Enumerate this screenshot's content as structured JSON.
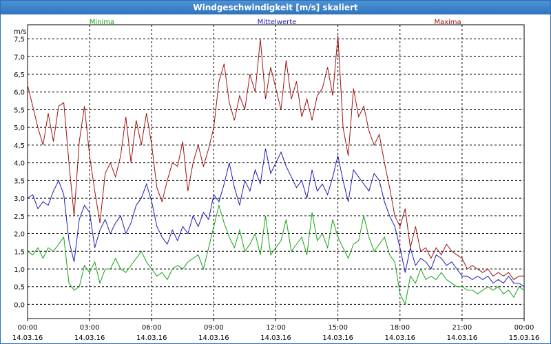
{
  "window": {
    "title": "Windgeschwindigkeit [m/s] skaliert"
  },
  "colors": {
    "minima": "#13a313",
    "mittelwerte": "#1a1ab4",
    "maxima": "#a01010",
    "grid": "#000000",
    "title_bar": "#3a80c8"
  },
  "chart_data": {
    "type": "line",
    "title": "Windgeschwindigkeit [m/s] skaliert",
    "ylabel": "m/s",
    "ylim": [
      -0.4,
      7.9
    ],
    "yticks": [
      "0,0",
      "0,5",
      "1,0",
      "1,5",
      "2,0",
      "2,5",
      "3,0",
      "3,5",
      "4,0",
      "4,5",
      "5,0",
      "5,5",
      "6,0",
      "6,5",
      "7,0",
      "7,5"
    ],
    "xlim": [
      0,
      24
    ],
    "xticks": [
      {
        "time": "00:00",
        "date": "14.03.16"
      },
      {
        "time": "03:00",
        "date": "14.03.16"
      },
      {
        "time": "06:00",
        "date": "14.03.16"
      },
      {
        "time": "09:00",
        "date": "14.03.16"
      },
      {
        "time": "12:00",
        "date": "14.03.16"
      },
      {
        "time": "15:00",
        "date": "14.03.16"
      },
      {
        "time": "18:00",
        "date": "14.03.16"
      },
      {
        "time": "21:00",
        "date": "14.03.16"
      },
      {
        "time": "00:00",
        "date": "15.03.16"
      }
    ],
    "grid": true,
    "legend": "top",
    "series": [
      {
        "name": "Minima",
        "x": [
          0,
          0.25,
          0.5,
          0.75,
          1,
          1.25,
          1.5,
          1.75,
          2,
          2.25,
          2.5,
          2.75,
          3,
          3.25,
          3.5,
          3.75,
          4,
          4.25,
          4.5,
          4.75,
          5,
          5.25,
          5.5,
          5.75,
          6,
          6.25,
          6.5,
          6.75,
          7,
          7.25,
          7.5,
          7.75,
          8,
          8.25,
          8.5,
          8.75,
          9,
          9.25,
          9.5,
          9.75,
          10,
          10.25,
          10.5,
          10.75,
          11,
          11.25,
          11.5,
          11.75,
          12,
          12.25,
          12.5,
          12.75,
          13,
          13.25,
          13.5,
          13.75,
          14,
          14.25,
          14.5,
          14.75,
          15,
          15.25,
          15.5,
          15.75,
          16,
          16.25,
          16.5,
          16.75,
          17,
          17.25,
          17.5,
          17.75,
          18,
          18.25,
          18.5,
          18.75,
          19,
          19.25,
          19.5,
          19.75,
          20,
          20.25,
          20.5,
          20.75,
          21,
          21.25,
          21.5,
          21.75,
          22,
          22.25,
          22.5,
          22.75,
          23,
          23.25,
          23.5,
          23.75,
          24
        ],
        "values": [
          1.5,
          1.4,
          1.6,
          1.3,
          1.6,
          1.5,
          1.7,
          1.9,
          0.6,
          0.4,
          0.5,
          1.1,
          0.9,
          1.2,
          0.6,
          1.0,
          1.0,
          1.3,
          1.0,
          0.9,
          1.1,
          1.3,
          1.5,
          1.2,
          1.0,
          0.8,
          0.9,
          0.7,
          1.0,
          1.1,
          1.0,
          1.2,
          1.3,
          1.4,
          1.0,
          1.6,
          2.2,
          2.8,
          2.3,
          1.9,
          1.6,
          2.1,
          1.5,
          1.7,
          2.0,
          1.4,
          2.5,
          1.4,
          1.6,
          1.8,
          2.4,
          1.5,
          1.7,
          1.9,
          1.4,
          2.6,
          1.8,
          2.0,
          1.6,
          2.4,
          1.9,
          1.6,
          1.3,
          1.7,
          1.8,
          2.5,
          1.9,
          1.5,
          1.7,
          1.9,
          1.4,
          1.2,
          0.3,
          0.0,
          0.8,
          0.6,
          1.0,
          0.7,
          0.8,
          0.7,
          0.9,
          0.7,
          0.6,
          0.5,
          0.5,
          0.4,
          0.4,
          0.3,
          0.4,
          0.5,
          0.4,
          0.5,
          0.3,
          0.4,
          0.2,
          0.5,
          0.4
        ],
        "color": "#13a313"
      },
      {
        "name": "Mittelwerte",
        "x": [
          0,
          0.25,
          0.5,
          0.75,
          1,
          1.25,
          1.5,
          1.75,
          2,
          2.25,
          2.5,
          2.75,
          3,
          3.25,
          3.5,
          3.75,
          4,
          4.25,
          4.5,
          4.75,
          5,
          5.25,
          5.5,
          5.75,
          6,
          6.25,
          6.5,
          6.75,
          7,
          7.25,
          7.5,
          7.75,
          8,
          8.25,
          8.5,
          8.75,
          9,
          9.25,
          9.5,
          9.75,
          10,
          10.25,
          10.5,
          10.75,
          11,
          11.25,
          11.5,
          11.75,
          12,
          12.25,
          12.5,
          12.75,
          13,
          13.25,
          13.5,
          13.75,
          14,
          14.25,
          14.5,
          14.75,
          15,
          15.25,
          15.5,
          15.75,
          16,
          16.25,
          16.5,
          16.75,
          17,
          17.25,
          17.5,
          17.75,
          18,
          18.25,
          18.5,
          18.75,
          19,
          19.25,
          19.5,
          19.75,
          20,
          20.25,
          20.5,
          20.75,
          21,
          21.25,
          21.5,
          21.75,
          22,
          22.25,
          22.5,
          22.75,
          23,
          23.25,
          23.5,
          23.75,
          24
        ],
        "values": [
          3.0,
          3.1,
          2.7,
          2.9,
          2.8,
          3.2,
          3.5,
          3.1,
          1.8,
          1.2,
          2.4,
          2.8,
          2.6,
          1.6,
          2.1,
          2.4,
          2.0,
          2.3,
          2.5,
          2.0,
          2.3,
          2.8,
          3.0,
          3.4,
          2.9,
          2.2,
          1.9,
          1.7,
          2.1,
          1.8,
          2.2,
          2.0,
          2.5,
          2.2,
          2.6,
          2.4,
          3.1,
          2.9,
          3.4,
          4.0,
          3.3,
          2.8,
          3.5,
          3.2,
          3.8,
          3.4,
          4.4,
          3.7,
          4.0,
          4.3,
          3.9,
          3.6,
          3.3,
          3.5,
          3.0,
          3.8,
          3.2,
          3.4,
          3.1,
          3.6,
          4.2,
          3.5,
          2.9,
          3.8,
          3.6,
          3.4,
          3.2,
          3.7,
          3.5,
          2.9,
          2.5,
          2.2,
          1.6,
          0.9,
          1.6,
          1.1,
          1.3,
          1.2,
          1.0,
          1.4,
          1.3,
          1.1,
          1.2,
          1.0,
          0.8,
          0.8,
          0.7,
          0.8,
          0.7,
          0.8,
          0.6,
          0.7,
          0.6,
          0.8,
          0.6,
          0.6,
          0.5
        ],
        "color": "#1a1ab4"
      },
      {
        "name": "Maxima",
        "x": [
          0,
          0.25,
          0.5,
          0.75,
          1,
          1.25,
          1.5,
          1.75,
          2,
          2.25,
          2.5,
          2.75,
          3,
          3.25,
          3.5,
          3.75,
          4,
          4.25,
          4.5,
          4.75,
          5,
          5.25,
          5.5,
          5.75,
          6,
          6.25,
          6.5,
          6.75,
          7,
          7.25,
          7.5,
          7.75,
          8,
          8.25,
          8.5,
          8.75,
          9,
          9.25,
          9.5,
          9.75,
          10,
          10.25,
          10.5,
          10.75,
          11,
          11.25,
          11.5,
          11.75,
          12,
          12.25,
          12.5,
          12.75,
          13,
          13.25,
          13.5,
          13.75,
          14,
          14.25,
          14.5,
          14.75,
          15,
          15.25,
          15.5,
          15.75,
          16,
          16.25,
          16.5,
          16.75,
          17,
          17.25,
          17.5,
          17.75,
          18,
          18.25,
          18.5,
          18.75,
          19,
          19.25,
          19.5,
          19.75,
          20,
          20.25,
          20.5,
          20.75,
          21,
          21.25,
          21.5,
          21.75,
          22,
          22.25,
          22.5,
          22.75,
          23,
          23.25,
          23.5,
          23.75,
          24
        ],
        "values": [
          6.2,
          5.6,
          5.0,
          4.5,
          5.4,
          4.6,
          5.6,
          5.7,
          4.0,
          2.5,
          4.6,
          5.6,
          4.2,
          3.2,
          2.3,
          3.7,
          4.0,
          3.6,
          4.2,
          5.3,
          4.0,
          5.2,
          4.5,
          5.4,
          4.5,
          3.3,
          2.9,
          3.5,
          4.0,
          3.9,
          4.6,
          3.2,
          4.0,
          4.5,
          3.9,
          4.4,
          5.0,
          6.3,
          6.8,
          5.7,
          5.2,
          5.9,
          5.5,
          6.5,
          6.0,
          7.5,
          5.8,
          6.7,
          6.1,
          5.5,
          6.9,
          5.8,
          6.3,
          5.3,
          5.8,
          5.2,
          5.9,
          6.1,
          6.7,
          5.9,
          7.6,
          5.0,
          4.2,
          6.1,
          5.3,
          5.6,
          4.9,
          4.5,
          4.8,
          4.0,
          3.3,
          2.5,
          2.2,
          2.7,
          1.6,
          2.2,
          1.5,
          1.6,
          1.3,
          1.6,
          1.4,
          1.7,
          1.5,
          1.4,
          1.3,
          1.0,
          1.1,
          1.0,
          0.9,
          1.0,
          0.8,
          0.9,
          0.8,
          0.9,
          0.7,
          0.8,
          0.8
        ],
        "color": "#a01010"
      }
    ]
  }
}
